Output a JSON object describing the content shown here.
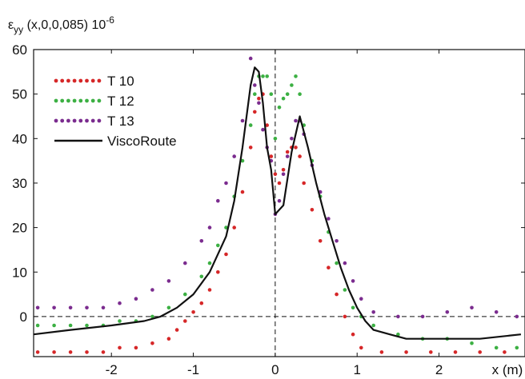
{
  "chart_data": {
    "type": "scatter",
    "ylabel": {
      "symbol": "ε",
      "subscript": "yy",
      "args": " (x,0,0,085) 10",
      "exponent": "-6"
    },
    "xlabel": "x (m)",
    "xlim": [
      -2.95,
      3.05
    ],
    "ylim": [
      -9,
      60
    ],
    "x_ticks": [
      {
        "value": -2,
        "label": "-2"
      },
      {
        "value": -1,
        "label": "-1"
      },
      {
        "value": 0,
        "label": "0"
      },
      {
        "value": 1,
        "label": "1"
      },
      {
        "value": 2,
        "label": "2"
      }
    ],
    "y_ticks": [
      {
        "value": 0,
        "label": "0"
      },
      {
        "value": 10,
        "label": "10"
      },
      {
        "value": 20,
        "label": "20"
      },
      {
        "value": 30,
        "label": "30"
      },
      {
        "value": 40,
        "label": "40"
      },
      {
        "value": 50,
        "label": "50"
      },
      {
        "value": 60,
        "label": "60"
      }
    ],
    "reference_lines": {
      "x": 0,
      "y": 0,
      "style": "dashed"
    },
    "legend_position": "top-left",
    "series": [
      {
        "name": "T 10",
        "kind": "dots",
        "color": "#d62728",
        "points": [
          [
            -2.9,
            -8
          ],
          [
            -2.7,
            -8
          ],
          [
            -2.5,
            -8
          ],
          [
            -2.3,
            -8
          ],
          [
            -2.1,
            -8
          ],
          [
            -1.9,
            -7
          ],
          [
            -1.7,
            -7
          ],
          [
            -1.5,
            -6
          ],
          [
            -1.3,
            -5
          ],
          [
            -1.2,
            -3
          ],
          [
            -1.1,
            -1
          ],
          [
            -1.0,
            1
          ],
          [
            -0.9,
            3
          ],
          [
            -0.8,
            6
          ],
          [
            -0.7,
            10
          ],
          [
            -0.6,
            14
          ],
          [
            -0.5,
            20
          ],
          [
            -0.4,
            28
          ],
          [
            -0.3,
            38
          ],
          [
            -0.25,
            46
          ],
          [
            -0.2,
            49
          ],
          [
            -0.15,
            50
          ],
          [
            -0.1,
            43
          ],
          [
            -0.05,
            36
          ],
          [
            0.0,
            32
          ],
          [
            0.05,
            30
          ],
          [
            0.1,
            33
          ],
          [
            0.15,
            37
          ],
          [
            0.2,
            38
          ],
          [
            0.25,
            38
          ],
          [
            0.3,
            36
          ],
          [
            0.35,
            30
          ],
          [
            0.45,
            24
          ],
          [
            0.55,
            17
          ],
          [
            0.65,
            11
          ],
          [
            0.75,
            5
          ],
          [
            0.85,
            0
          ],
          [
            0.95,
            -4
          ],
          [
            1.05,
            -7
          ],
          [
            1.3,
            -8
          ],
          [
            1.6,
            -8
          ],
          [
            1.9,
            -8
          ],
          [
            2.2,
            -8
          ],
          [
            2.5,
            -8
          ],
          [
            2.8,
            -8
          ]
        ]
      },
      {
        "name": "T 12",
        "kind": "dots",
        "color": "#3cb043",
        "points": [
          [
            -2.9,
            -2
          ],
          [
            -2.7,
            -2
          ],
          [
            -2.5,
            -2
          ],
          [
            -2.3,
            -2
          ],
          [
            -2.1,
            -2
          ],
          [
            -1.9,
            -1
          ],
          [
            -1.7,
            -1
          ],
          [
            -1.5,
            0
          ],
          [
            -1.3,
            2
          ],
          [
            -1.1,
            5
          ],
          [
            -0.9,
            9
          ],
          [
            -0.8,
            12
          ],
          [
            -0.7,
            16
          ],
          [
            -0.6,
            20
          ],
          [
            -0.5,
            27
          ],
          [
            -0.4,
            35
          ],
          [
            -0.3,
            43
          ],
          [
            -0.25,
            50
          ],
          [
            -0.2,
            54
          ],
          [
            -0.15,
            54
          ],
          [
            -0.1,
            54
          ],
          [
            -0.05,
            50
          ],
          [
            0.0,
            40
          ],
          [
            0.05,
            47
          ],
          [
            0.1,
            49
          ],
          [
            0.15,
            50
          ],
          [
            0.2,
            52
          ],
          [
            0.25,
            54
          ],
          [
            0.3,
            50
          ],
          [
            0.35,
            43
          ],
          [
            0.45,
            35
          ],
          [
            0.55,
            27
          ],
          [
            0.65,
            19
          ],
          [
            0.75,
            12
          ],
          [
            0.85,
            6
          ],
          [
            0.95,
            2
          ],
          [
            1.05,
            0
          ],
          [
            1.2,
            -2
          ],
          [
            1.5,
            -4
          ],
          [
            1.8,
            -5
          ],
          [
            2.1,
            -5
          ],
          [
            2.4,
            -6
          ],
          [
            2.7,
            -7
          ],
          [
            2.95,
            -7
          ]
        ]
      },
      {
        "name": "T 13",
        "kind": "dots",
        "color": "#7b2c8f",
        "points": [
          [
            -2.9,
            2
          ],
          [
            -2.7,
            2
          ],
          [
            -2.5,
            2
          ],
          [
            -2.3,
            2
          ],
          [
            -2.1,
            2
          ],
          [
            -1.9,
            3
          ],
          [
            -1.7,
            4
          ],
          [
            -1.5,
            6
          ],
          [
            -1.3,
            8
          ],
          [
            -1.1,
            12
          ],
          [
            -0.9,
            17
          ],
          [
            -0.8,
            20
          ],
          [
            -0.7,
            26
          ],
          [
            -0.6,
            30
          ],
          [
            -0.5,
            36
          ],
          [
            -0.4,
            44
          ],
          [
            -0.3,
            58
          ],
          [
            -0.25,
            52
          ],
          [
            -0.2,
            48
          ],
          [
            -0.15,
            42
          ],
          [
            -0.1,
            38
          ],
          [
            -0.05,
            35
          ],
          [
            0.0,
            23
          ],
          [
            0.05,
            26
          ],
          [
            0.1,
            32
          ],
          [
            0.15,
            36
          ],
          [
            0.2,
            40
          ],
          [
            0.25,
            44
          ],
          [
            0.3,
            44
          ],
          [
            0.35,
            41
          ],
          [
            0.45,
            34
          ],
          [
            0.55,
            28
          ],
          [
            0.65,
            22
          ],
          [
            0.75,
            17
          ],
          [
            0.85,
            12
          ],
          [
            0.95,
            8
          ],
          [
            1.05,
            4
          ],
          [
            1.2,
            1
          ],
          [
            1.5,
            0
          ],
          [
            1.8,
            0
          ],
          [
            2.1,
            1
          ],
          [
            2.4,
            2
          ],
          [
            2.7,
            1
          ],
          [
            2.95,
            0
          ]
        ]
      },
      {
        "name": "ViscoRoute",
        "kind": "line",
        "color": "#111111",
        "points": [
          [
            -2.95,
            -4
          ],
          [
            -2.5,
            -3
          ],
          [
            -2.0,
            -2
          ],
          [
            -1.6,
            -1
          ],
          [
            -1.4,
            0
          ],
          [
            -1.2,
            2
          ],
          [
            -1.0,
            5
          ],
          [
            -0.8,
            10
          ],
          [
            -0.6,
            18
          ],
          [
            -0.5,
            26
          ],
          [
            -0.4,
            38
          ],
          [
            -0.3,
            52
          ],
          [
            -0.25,
            56
          ],
          [
            -0.2,
            55
          ],
          [
            -0.15,
            48
          ],
          [
            -0.1,
            38
          ],
          [
            -0.05,
            33
          ],
          [
            0.0,
            23
          ],
          [
            0.1,
            25
          ],
          [
            0.2,
            37
          ],
          [
            0.3,
            45
          ],
          [
            0.4,
            38
          ],
          [
            0.5,
            30
          ],
          [
            0.6,
            23
          ],
          [
            0.7,
            17
          ],
          [
            0.8,
            11
          ],
          [
            0.9,
            6
          ],
          [
            1.0,
            2
          ],
          [
            1.1,
            -1
          ],
          [
            1.2,
            -3
          ],
          [
            1.4,
            -4
          ],
          [
            1.6,
            -5
          ],
          [
            2.0,
            -5
          ],
          [
            2.5,
            -5
          ],
          [
            3.0,
            -4
          ]
        ]
      }
    ]
  }
}
